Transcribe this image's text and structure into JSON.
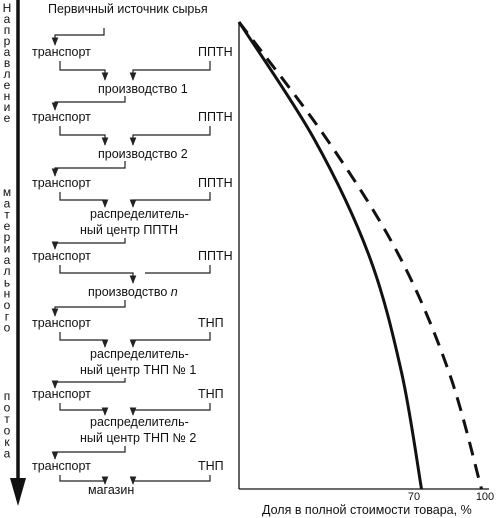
{
  "flow": {
    "source": "Первичный источник сырья",
    "transport": "транспорт",
    "pptn": "ППТН",
    "tnp": "ТНП",
    "production_1": "производство 1",
    "production_2": "производство 2",
    "dc_pptn_line1": "распределитель-",
    "dc_pptn_line2": "ный центр ППТН",
    "production_n_prefix": "производство ",
    "production_n_var": "n",
    "dc_tnp1_line1": "распределитель-",
    "dc_tnp1_line2": "ный центр ТНП № 1",
    "dc_tnp2_line1": "распределитель-",
    "dc_tnp2_line2": "ный центр ТНП № 2",
    "store": "магазин"
  },
  "arrow_axis": {
    "letters_upper": [
      "Н",
      "а",
      "п",
      "р",
      "а",
      "в",
      "л",
      "е",
      "н",
      "и",
      "е"
    ],
    "letters_middle": [
      "м",
      "а",
      "т",
      "е",
      "р",
      "и",
      "а",
      "л",
      "ь",
      "н",
      "о",
      "г",
      "о"
    ],
    "letters_lower": [
      "п",
      "о",
      "т",
      "о",
      "к",
      "а"
    ]
  },
  "chart_data": {
    "type": "line",
    "xlabel": "Доля в полной стоимости товара, %",
    "x_ticks": [
      "70",
      "100"
    ],
    "xlim": [
      0,
      100
    ],
    "series": [
      {
        "style": "solid",
        "points": [
          [
            0,
            0
          ],
          [
            30,
            25
          ],
          [
            52,
            50
          ],
          [
            65,
            75
          ],
          [
            73,
            100
          ]
        ]
      },
      {
        "style": "dashed",
        "points": [
          [
            0,
            0
          ],
          [
            35,
            25
          ],
          [
            64,
            50
          ],
          [
            84,
            75
          ],
          [
            97,
            100
          ]
        ]
      }
    ]
  }
}
